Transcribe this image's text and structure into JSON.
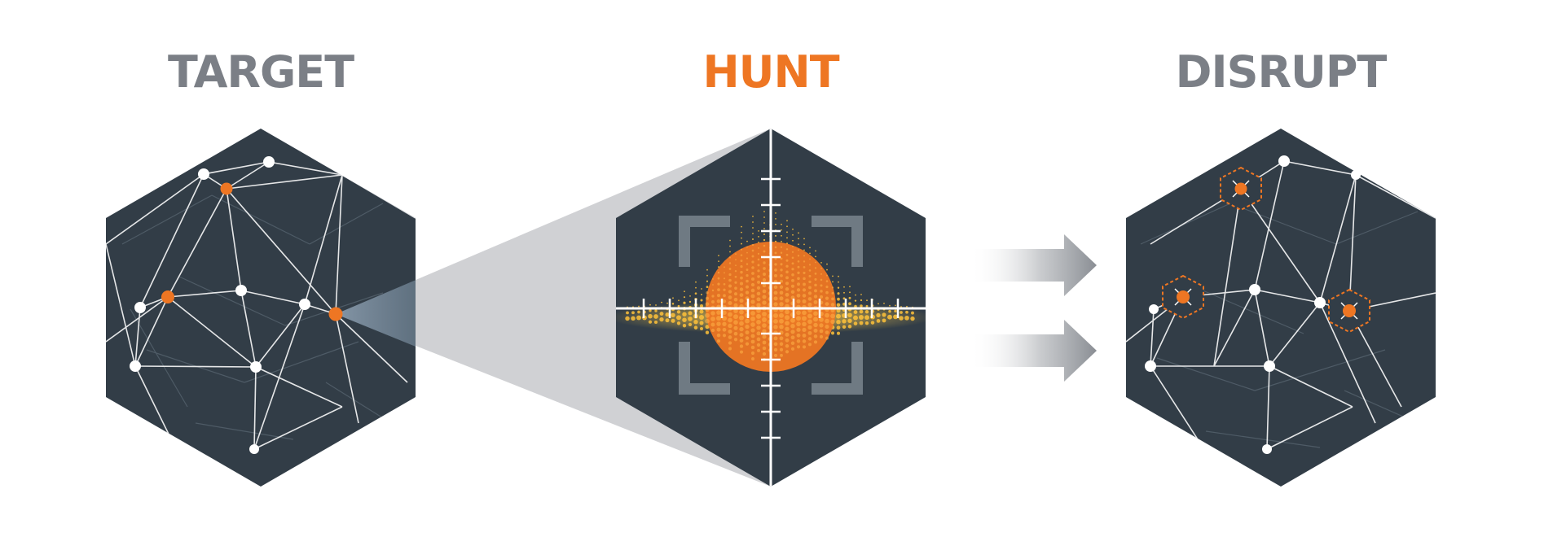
{
  "stages": [
    {
      "label": "TARGET",
      "color": "#7b7f86"
    },
    {
      "label": "HUNT",
      "color": "#ee7623"
    },
    {
      "label": "DISRUPT",
      "color": "#7b7f86"
    }
  ],
  "colors": {
    "hexagon": "#323d47",
    "accent": "#ee7623",
    "node": "#ffffff",
    "spotlight": "#d0d1d4",
    "arrow": "#8a8e94",
    "bracket": "#6f7a83"
  }
}
